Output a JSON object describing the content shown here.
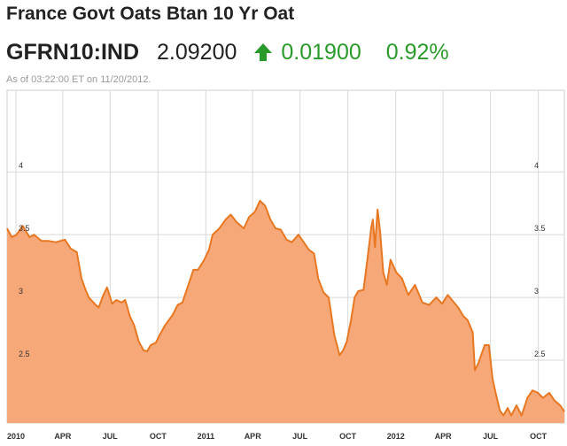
{
  "header": {
    "title": "France Govt Oats Btan 10 Yr Oat",
    "ticker": "GFRN10:IND",
    "price": "2.09200",
    "change": "0.01900",
    "change_pct": "0.92%",
    "as_of": "As of 03:22:00 ET on 11/20/2012.",
    "arrow_icon": "up-arrow-icon",
    "up_color": "#2a9a2a"
  },
  "chart_data": {
    "type": "area",
    "title": "",
    "xlabel": "",
    "ylabel": "",
    "xlim": [
      "2009-12-15",
      "2012-11-20"
    ],
    "ylim": [
      2.0,
      4.65
    ],
    "yticks": [
      2.5,
      3,
      3.5,
      4
    ],
    "ytick_labels": [
      "2.5",
      "3",
      "3.5",
      "4"
    ],
    "xticks": [
      {
        "date": "2010-01-01",
        "label": "2010"
      },
      {
        "date": "2010-04-01",
        "label": "APR"
      },
      {
        "date": "2010-07-01",
        "label": "JUL"
      },
      {
        "date": "2010-10-01",
        "label": "OCT"
      },
      {
        "date": "2011-01-01",
        "label": "2011"
      },
      {
        "date": "2011-04-01",
        "label": "APR"
      },
      {
        "date": "2011-07-01",
        "label": "JUL"
      },
      {
        "date": "2011-10-01",
        "label": "OCT"
      },
      {
        "date": "2012-01-01",
        "label": "2012"
      },
      {
        "date": "2012-04-01",
        "label": "APR"
      },
      {
        "date": "2012-07-01",
        "label": "JUL"
      },
      {
        "date": "2012-10-01",
        "label": "OCT"
      }
    ],
    "grid": true,
    "colors": {
      "line": "#e87722",
      "fill": "#f6a878",
      "grid": "#d8d8d8"
    },
    "series": [
      {
        "values": [
          [
            "2009-12-15",
            3.55
          ],
          [
            "2009-12-24",
            3.48
          ],
          [
            "2010-01-02",
            3.5
          ],
          [
            "2010-01-14",
            3.57
          ],
          [
            "2010-01-27",
            3.48
          ],
          [
            "2010-02-05",
            3.5
          ],
          [
            "2010-02-19",
            3.45
          ],
          [
            "2010-03-05",
            3.45
          ],
          [
            "2010-03-19",
            3.44
          ],
          [
            "2010-04-05",
            3.46
          ],
          [
            "2010-04-16",
            3.39
          ],
          [
            "2010-04-28",
            3.36
          ],
          [
            "2010-05-07",
            3.15
          ],
          [
            "2010-05-14",
            3.07
          ],
          [
            "2010-05-21",
            3.0
          ],
          [
            "2010-06-01",
            2.95
          ],
          [
            "2010-06-09",
            2.92
          ],
          [
            "2010-06-18",
            3.02
          ],
          [
            "2010-06-25",
            3.08
          ],
          [
            "2010-07-05",
            2.95
          ],
          [
            "2010-07-13",
            2.98
          ],
          [
            "2010-07-23",
            2.96
          ],
          [
            "2010-07-30",
            2.98
          ],
          [
            "2010-08-08",
            2.85
          ],
          [
            "2010-08-16",
            2.78
          ],
          [
            "2010-08-25",
            2.65
          ],
          [
            "2010-09-03",
            2.58
          ],
          [
            "2010-09-10",
            2.57
          ],
          [
            "2010-09-17",
            2.62
          ],
          [
            "2010-09-27",
            2.64
          ],
          [
            "2010-10-04",
            2.7
          ],
          [
            "2010-10-15",
            2.78
          ],
          [
            "2010-10-29",
            2.86
          ],
          [
            "2010-11-08",
            2.94
          ],
          [
            "2010-11-17",
            2.96
          ],
          [
            "2010-11-30",
            3.12
          ],
          [
            "2010-12-08",
            3.22
          ],
          [
            "2010-12-17",
            3.22
          ],
          [
            "2010-12-29",
            3.3
          ],
          [
            "2011-01-07",
            3.38
          ],
          [
            "2011-01-14",
            3.5
          ],
          [
            "2011-01-27",
            3.55
          ],
          [
            "2011-02-08",
            3.62
          ],
          [
            "2011-02-18",
            3.66
          ],
          [
            "2011-03-01",
            3.6
          ],
          [
            "2011-03-15",
            3.55
          ],
          [
            "2011-03-25",
            3.64
          ],
          [
            "2011-04-05",
            3.68
          ],
          [
            "2011-04-15",
            3.77
          ],
          [
            "2011-04-25",
            3.73
          ],
          [
            "2011-05-05",
            3.62
          ],
          [
            "2011-05-15",
            3.55
          ],
          [
            "2011-05-25",
            3.54
          ],
          [
            "2011-06-05",
            3.46
          ],
          [
            "2011-06-15",
            3.44
          ],
          [
            "2011-06-28",
            3.5
          ],
          [
            "2011-07-08",
            3.44
          ],
          [
            "2011-07-18",
            3.38
          ],
          [
            "2011-07-28",
            3.35
          ],
          [
            "2011-08-05",
            3.15
          ],
          [
            "2011-08-15",
            3.04
          ],
          [
            "2011-08-25",
            3.0
          ],
          [
            "2011-09-05",
            2.7
          ],
          [
            "2011-09-15",
            2.54
          ],
          [
            "2011-09-22",
            2.58
          ],
          [
            "2011-09-29",
            2.65
          ],
          [
            "2011-10-07",
            2.82
          ],
          [
            "2011-10-14",
            3.0
          ],
          [
            "2011-10-21",
            3.05
          ],
          [
            "2011-10-31",
            3.06
          ],
          [
            "2011-11-08",
            3.32
          ],
          [
            "2011-11-15",
            3.56
          ],
          [
            "2011-11-18",
            3.62
          ],
          [
            "2011-11-22",
            3.4
          ],
          [
            "2011-11-27",
            3.7
          ],
          [
            "2011-12-02",
            3.52
          ],
          [
            "2011-12-08",
            3.2
          ],
          [
            "2011-12-15",
            3.1
          ],
          [
            "2011-12-22",
            3.3
          ],
          [
            "2012-01-02",
            3.2
          ],
          [
            "2012-01-13",
            3.15
          ],
          [
            "2012-01-25",
            3.02
          ],
          [
            "2012-02-07",
            3.1
          ],
          [
            "2012-02-21",
            2.96
          ],
          [
            "2012-03-05",
            2.94
          ],
          [
            "2012-03-19",
            3.0
          ],
          [
            "2012-03-30",
            2.95
          ],
          [
            "2012-04-10",
            3.02
          ],
          [
            "2012-04-18",
            2.98
          ],
          [
            "2012-04-30",
            2.92
          ],
          [
            "2012-05-10",
            2.85
          ],
          [
            "2012-05-18",
            2.82
          ],
          [
            "2012-05-28",
            2.72
          ],
          [
            "2012-06-01",
            2.42
          ],
          [
            "2012-06-08",
            2.48
          ],
          [
            "2012-06-20",
            2.62
          ],
          [
            "2012-06-28",
            2.62
          ],
          [
            "2012-07-05",
            2.35
          ],
          [
            "2012-07-12",
            2.22
          ],
          [
            "2012-07-19",
            2.1
          ],
          [
            "2012-07-26",
            2.06
          ],
          [
            "2012-08-03",
            2.12
          ],
          [
            "2012-08-10",
            2.06
          ],
          [
            "2012-08-20",
            2.14
          ],
          [
            "2012-08-30",
            2.06
          ],
          [
            "2012-09-10",
            2.2
          ],
          [
            "2012-09-20",
            2.26
          ],
          [
            "2012-09-30",
            2.24
          ],
          [
            "2012-10-10",
            2.2
          ],
          [
            "2012-10-22",
            2.24
          ],
          [
            "2012-11-01",
            2.18
          ],
          [
            "2012-11-12",
            2.14
          ],
          [
            "2012-11-20",
            2.09
          ]
        ]
      }
    ]
  }
}
